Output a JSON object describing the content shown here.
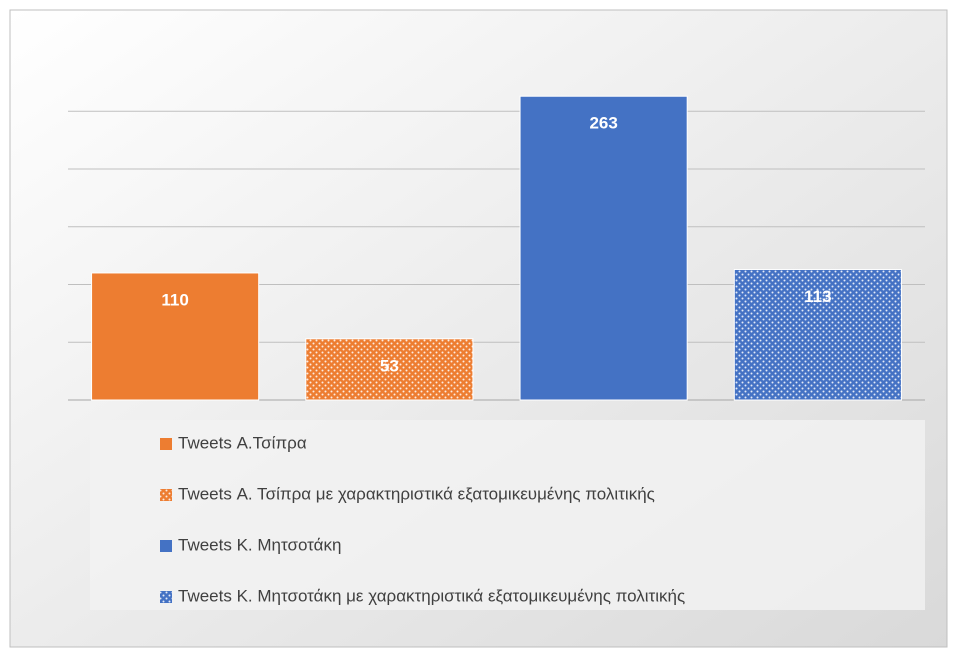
{
  "chart_data": {
    "type": "bar",
    "categories": [
      null
    ],
    "series": [
      {
        "name": "Tweets Α.Τσίπρα",
        "color": "#ed7d31",
        "pattern": "solid",
        "values": [
          110
        ]
      },
      {
        "name": "Tweets Α. Τσίπρα με χαρακτηριστικά εξατομικευμένης πολιτικής",
        "color": "#ed7d31",
        "pattern": "dotted",
        "values": [
          53
        ]
      },
      {
        "name": "Tweets Κ. Μητσοτάκη",
        "color": "#4472c4",
        "pattern": "solid",
        "values": [
          263
        ]
      },
      {
        "name": "Tweets Κ. Μητσοτάκη με χαρακτηριστικά εξατομικευμένης πολιτικής",
        "color": "#4472c4",
        "pattern": "dotted",
        "values": [
          113
        ]
      }
    ],
    "ylim": [
      0,
      300
    ],
    "yticks": [
      0,
      50,
      100,
      150,
      200,
      250
    ],
    "grid": true,
    "legend": "bottom"
  }
}
